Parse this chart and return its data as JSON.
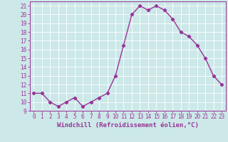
{
  "x": [
    0,
    1,
    2,
    3,
    4,
    5,
    6,
    7,
    8,
    9,
    10,
    11,
    12,
    13,
    14,
    15,
    16,
    17,
    18,
    19,
    20,
    21,
    22,
    23
  ],
  "y": [
    11,
    11,
    10,
    9.5,
    10,
    10.5,
    9.5,
    10,
    10.5,
    11,
    13,
    16.5,
    20,
    21,
    20.5,
    21,
    20.5,
    19.5,
    18,
    17.5,
    16.5,
    15,
    13,
    12
  ],
  "line_color": "#993399",
  "marker": "D",
  "markersize": 2.2,
  "linewidth": 1.0,
  "xlabel": "Windchill (Refroidissement éolien,°C)",
  "xlim": [
    -0.5,
    23.5
  ],
  "ylim": [
    9,
    21.5
  ],
  "yticks": [
    9,
    10,
    11,
    12,
    13,
    14,
    15,
    16,
    17,
    18,
    19,
    20,
    21
  ],
  "xticks": [
    0,
    1,
    2,
    3,
    4,
    5,
    6,
    7,
    8,
    9,
    10,
    11,
    12,
    13,
    14,
    15,
    16,
    17,
    18,
    19,
    20,
    21,
    22,
    23
  ],
  "background_color": "#cce8e8",
  "grid_color": "#ffffff",
  "tick_fontsize": 5.5,
  "xlabel_fontsize": 6.5
}
